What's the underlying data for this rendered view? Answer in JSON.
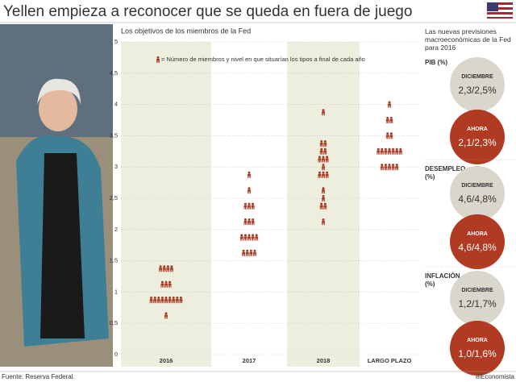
{
  "header": {
    "title": "Yellen empieza a reconocer que se queda en fuera de juego"
  },
  "chart_data": {
    "type": "dot",
    "title": "Los objetivos de los miembros de la Fed",
    "legend": "= Número de miembros y nivel en que situarían los tipos a final de cada año",
    "color": "#a83a22",
    "categories": [
      "2016",
      "2017",
      "2018",
      "LARGO PLAZO"
    ],
    "groups": [
      {
        "rows": [
          {
            "value": 1.375,
            "count": 4
          },
          {
            "value": 1.125,
            "count": 3
          },
          {
            "value": 0.875,
            "count": 9
          },
          {
            "value": 0.625,
            "count": 1
          }
        ]
      },
      {
        "rows": [
          {
            "value": 2.875,
            "count": 1
          },
          {
            "value": 2.625,
            "count": 1
          },
          {
            "value": 2.375,
            "count": 3
          },
          {
            "value": 2.125,
            "count": 3
          },
          {
            "value": 1.875,
            "count": 5
          },
          {
            "value": 1.625,
            "count": 4
          }
        ]
      },
      {
        "rows": [
          {
            "value": 3.875,
            "count": 1
          },
          {
            "value": 3.375,
            "count": 2
          },
          {
            "value": 3.25,
            "count": 2
          },
          {
            "value": 3.125,
            "count": 3
          },
          {
            "value": 3.0,
            "count": 1
          },
          {
            "value": 2.875,
            "count": 3
          },
          {
            "value": 2.625,
            "count": 1
          },
          {
            "value": 2.5,
            "count": 1
          },
          {
            "value": 2.375,
            "count": 2
          },
          {
            "value": 2.125,
            "count": 1
          }
        ]
      },
      {
        "rows": [
          {
            "value": 4.0,
            "count": 1
          },
          {
            "value": 3.75,
            "count": 2
          },
          {
            "value": 3.5,
            "count": 2
          },
          {
            "value": 3.25,
            "count": 7
          },
          {
            "value": 3.0,
            "count": 5
          }
        ]
      }
    ],
    "ylim": [
      0,
      5
    ],
    "yticks": [
      0,
      {
        "value": 0.5,
        "label": "0,5"
      },
      1,
      {
        "value": 1.5,
        "label": "1,5"
      },
      2,
      {
        "value": 2.5,
        "label": "2,5"
      },
      3,
      {
        "value": 3.5,
        "label": "3,5"
      },
      4,
      {
        "value": 4.5,
        "label": "4,5"
      },
      5
    ]
  },
  "sidebar": {
    "intro": "Las nuevas previsiones macroeconómicas de la Fed para 2016",
    "sections": [
      {
        "label": "PIB (%)",
        "before_label": "DICIEMBRE",
        "before": "2,3/2,5%",
        "now_label": "AHORA",
        "now": "2,1/2,3%"
      },
      {
        "label": "DESEMPLEO (%)",
        "before_label": "DICIEMBRE",
        "before": "4,6/4,8%",
        "now_label": "AHORA",
        "now": "4,6/4,8%"
      },
      {
        "label": "INFLACIÓN (%)",
        "before_label": "DICIEMBRE",
        "before": "1,2/1,7%",
        "now_label": "AHORA",
        "now": "1,0/1,6%"
      }
    ]
  },
  "footer": {
    "source": "Fuente: Reserva Federal.",
    "brand": "elEconomista"
  }
}
